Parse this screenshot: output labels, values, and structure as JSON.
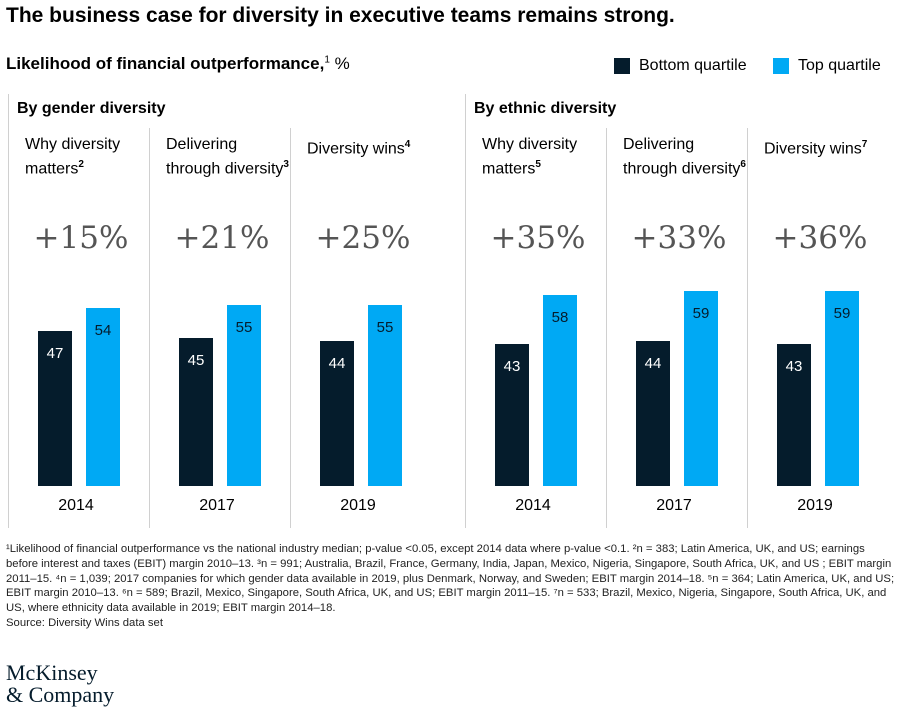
{
  "title": "The business case for diversity in executive teams remains strong.",
  "subtitle": "Likelihood of financial outperformance,",
  "subtitle_sup": "1",
  "subtitle_unit": " %",
  "legend": [
    {
      "label": "Bottom quartile",
      "color": "#051c2c"
    },
    {
      "label": "Top quartile",
      "color": "#00a9f4"
    }
  ],
  "chart_data": {
    "type": "bar",
    "series": [
      {
        "name": "Bottom quartile",
        "color": "#051c2c"
      },
      {
        "name": "Top quartile",
        "color": "#00a9f4"
      }
    ],
    "groups": [
      {
        "title": "By gender diversity",
        "panels": [
          {
            "title": "Why diversity matters",
            "sup": "2",
            "delta": "+15%",
            "year": "2014",
            "values": [
              47,
              54
            ]
          },
          {
            "title": "Delivering through diversity",
            "sup": "3",
            "delta": "+21%",
            "year": "2017",
            "values": [
              45,
              55
            ]
          },
          {
            "title": "Diversity wins",
            "sup": "4",
            "delta": "+25%",
            "year": "2019",
            "values": [
              44,
              55
            ]
          }
        ]
      },
      {
        "title": "By ethnic diversity",
        "panels": [
          {
            "title": "Why diversity matters",
            "sup": "5",
            "delta": "+35%",
            "year": "2014",
            "values": [
              43,
              58
            ]
          },
          {
            "title": "Delivering through diversity",
            "sup": "6",
            "delta": "+33%",
            "year": "2017",
            "values": [
              44,
              59
            ]
          },
          {
            "title": "Diversity wins",
            "sup": "7",
            "delta": "+36%",
            "year": "2019",
            "values": [
              43,
              59
            ]
          }
        ]
      }
    ]
  },
  "footnotes": "¹Likelihood of financial outperformance vs the national industry median; p-value <0.05, except 2014 data where p-value <0.1.  ²n = 383; Latin America, UK, and US; earnings before interest and taxes (EBIT) margin 2010–13. ³n = 991; Australia, Brazil, France, Germany, India, Japan, Mexico, Nigeria, Singapore, South Africa, UK, and US ; EBIT margin 2011–15. ⁴n = 1,039; 2017 companies for which gender data available in 2019, plus Denmark, Norway, and Sweden;  EBIT margin 2014–18. ⁵n = 364; Latin America, UK, and US; EBIT margin 2010–13. ⁶n = 589; Brazil, Mexico, Singapore, South Africa, UK, and US; EBIT margin 2011–15. ⁷n = 533; Brazil, Mexico, Nigeria, Singapore, South Africa, UK, and US, where ethnicity data available in 2019; EBIT margin 2014–18.",
  "source": "Source: Diversity Wins data set",
  "logo": [
    "McKinsey",
    "& Company"
  ]
}
